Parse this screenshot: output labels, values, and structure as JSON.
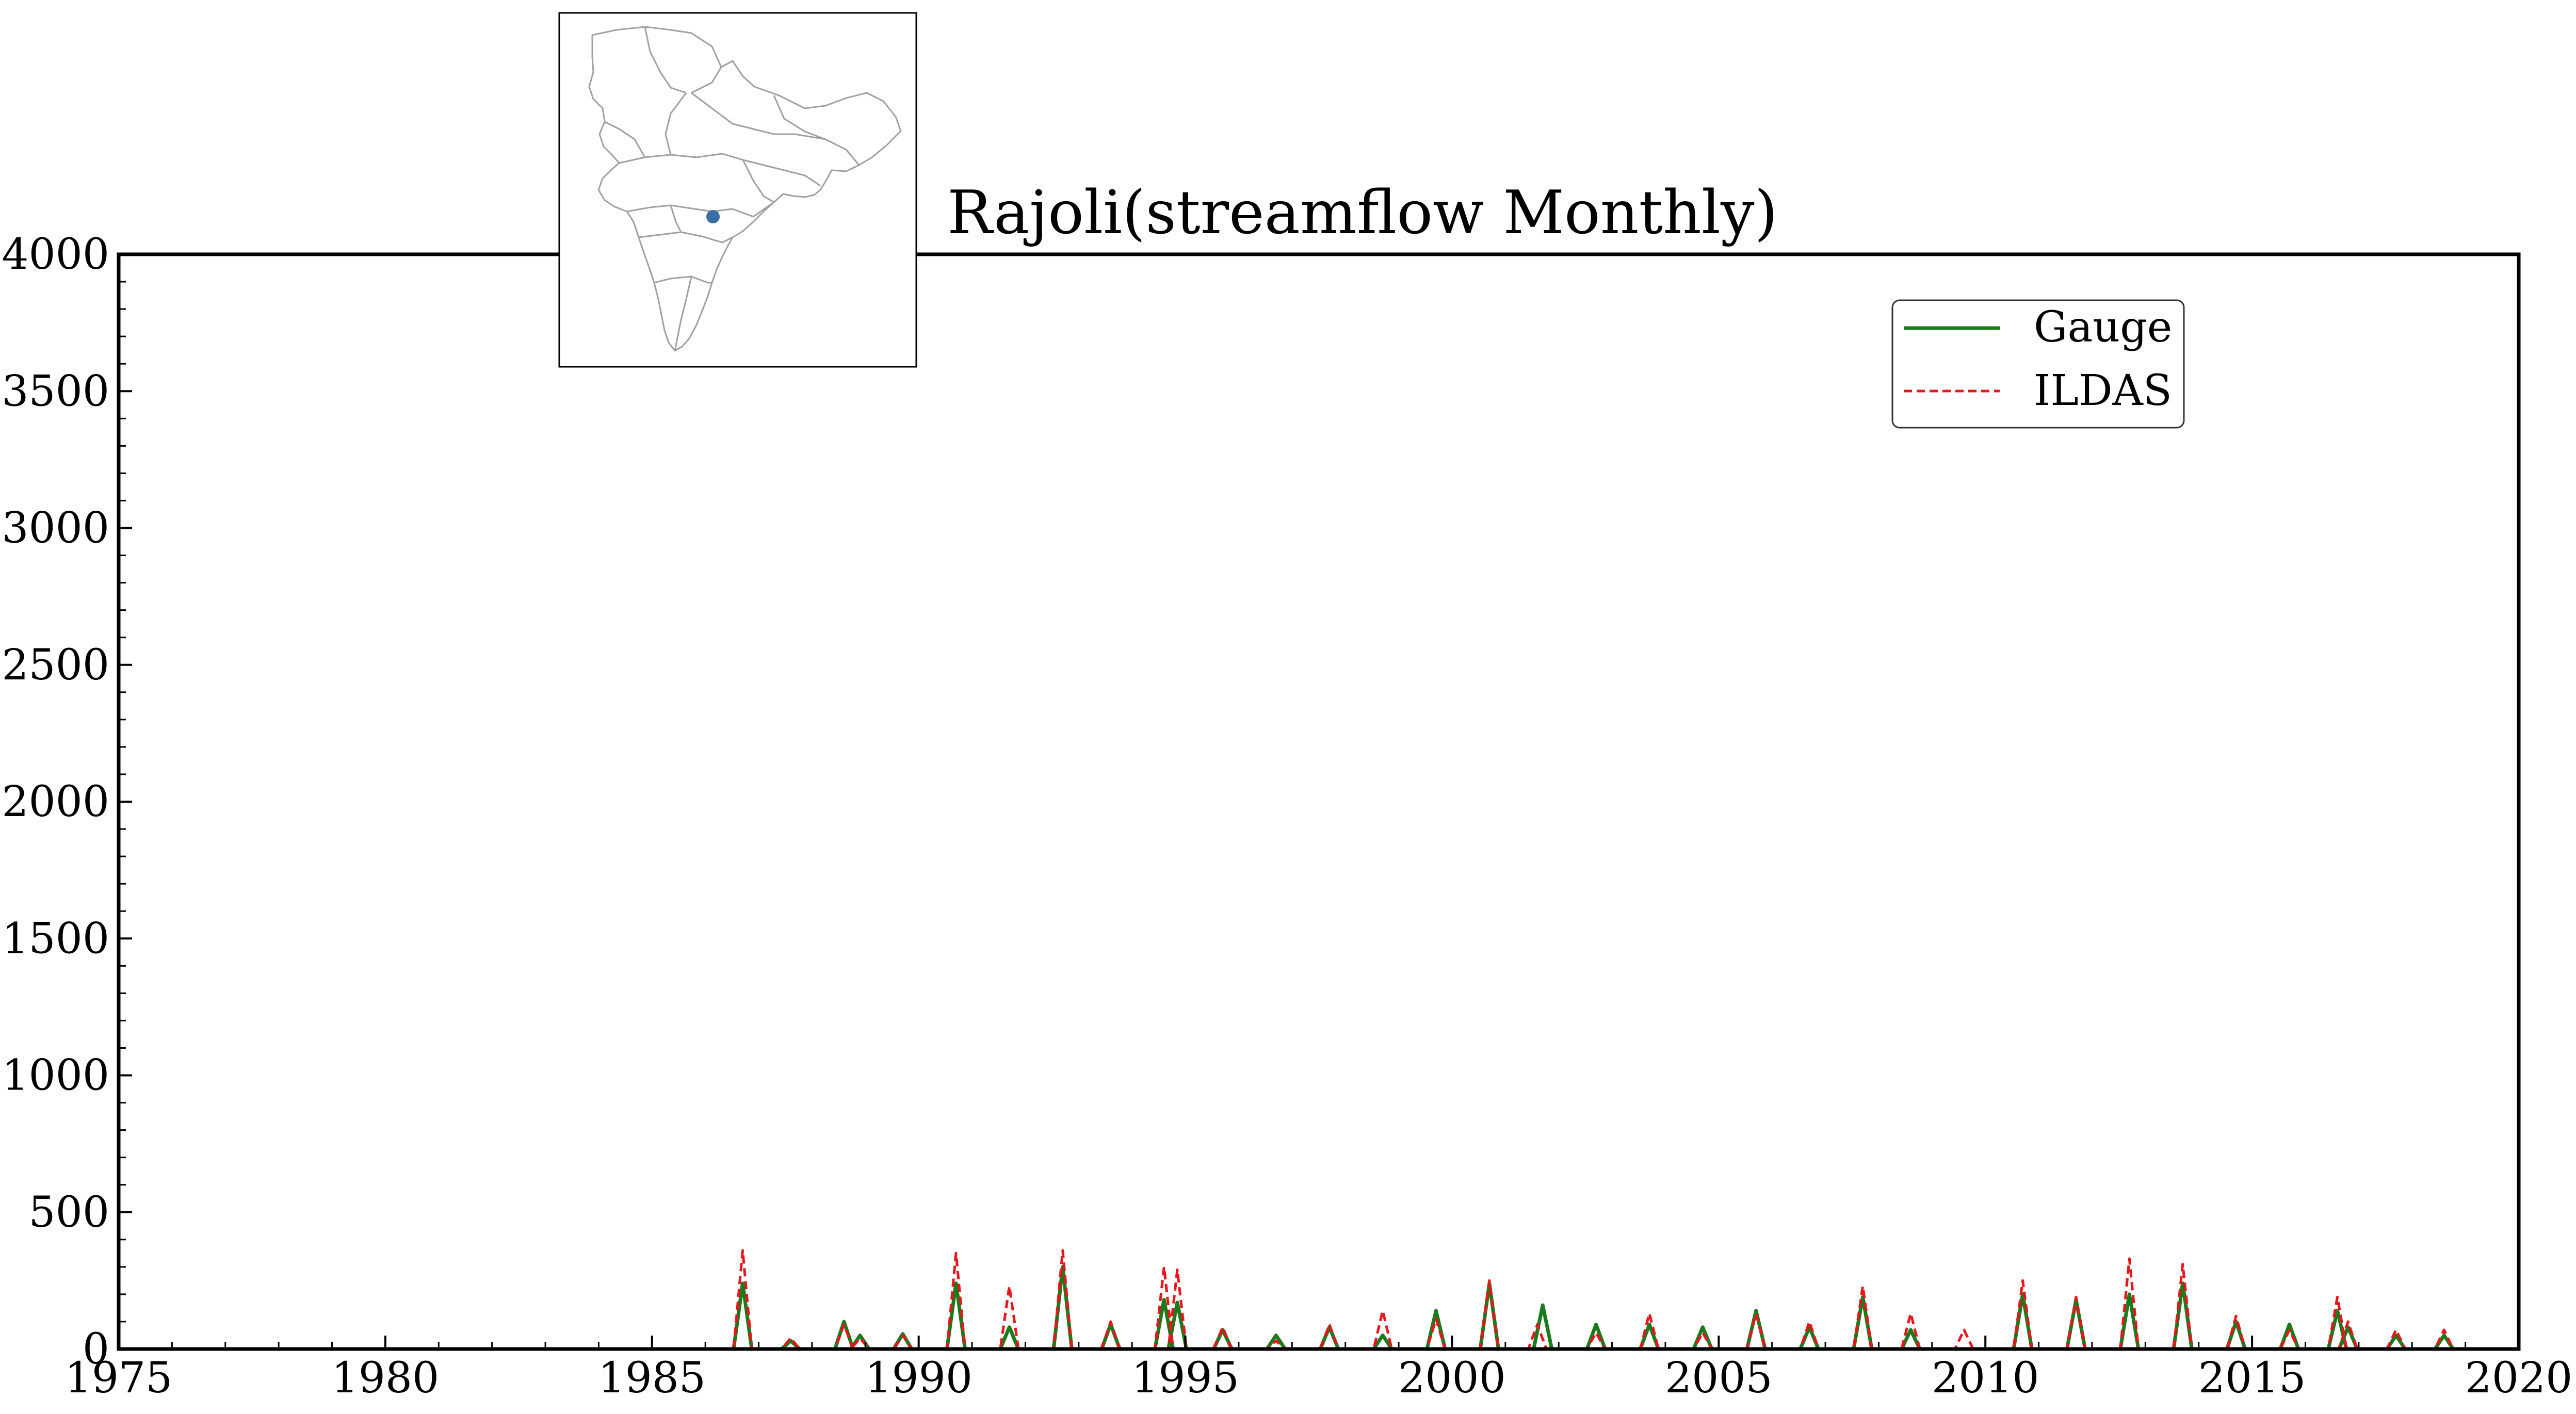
{
  "chart_data": {
    "type": "line",
    "title": "Rajoli(streamflow Monthly)",
    "xlabel": "",
    "ylabel": "",
    "xlim": [
      1975,
      2020
    ],
    "ylim": [
      0,
      4000
    ],
    "x_ticks": [
      "1975",
      "1980",
      "1985",
      "1990",
      "1995",
      "2000",
      "2005",
      "2010",
      "2015",
      "2020"
    ],
    "y_ticks": [
      "0",
      "500",
      "1000",
      "1500",
      "2000",
      "2500",
      "3000",
      "3500",
      "4000"
    ],
    "grid": false,
    "legend": "top-right",
    "inset": "location map of the Indian subcontinent river basins with a blue station marker",
    "series": [
      {
        "name": "Gauge",
        "color": "#1b7a1b",
        "style": "solid",
        "peaks": [
          [
            1986.7,
            240
          ],
          [
            1987.6,
            30
          ],
          [
            1988.6,
            100
          ],
          [
            1988.9,
            50
          ],
          [
            1989.7,
            55
          ],
          [
            1990.7,
            240
          ],
          [
            1991.7,
            80
          ],
          [
            1992.7,
            300
          ],
          [
            1993.6,
            90
          ],
          [
            1994.6,
            180
          ],
          [
            1994.85,
            170
          ],
          [
            1995.7,
            70
          ],
          [
            1996.7,
            50
          ],
          [
            1997.7,
            80
          ],
          [
            1998.7,
            50
          ],
          [
            1999.7,
            140
          ],
          [
            2000.7,
            240
          ],
          [
            2001.7,
            160
          ],
          [
            2002.7,
            90
          ],
          [
            2003.7,
            90
          ],
          [
            2004.7,
            80
          ],
          [
            2005.7,
            140
          ],
          [
            2006.7,
            80
          ],
          [
            2007.7,
            190
          ],
          [
            2008.6,
            70
          ],
          [
            2010.7,
            200
          ],
          [
            2011.7,
            180
          ],
          [
            2012.7,
            200
          ],
          [
            2013.7,
            240
          ],
          [
            2014.7,
            100
          ],
          [
            2015.7,
            90
          ],
          [
            2016.6,
            140
          ],
          [
            2016.8,
            80
          ],
          [
            2017.7,
            50
          ],
          [
            2018.6,
            50
          ]
        ]
      },
      {
        "name": "ILDAS",
        "color": "#e8151b",
        "style": "dashed",
        "peaks": [
          [
            1986.7,
            360
          ],
          [
            1987.6,
            40
          ],
          [
            1988.6,
            90
          ],
          [
            1988.9,
            40
          ],
          [
            1989.7,
            50
          ],
          [
            1990.7,
            350
          ],
          [
            1991.7,
            230
          ],
          [
            1992.7,
            360
          ],
          [
            1993.6,
            100
          ],
          [
            1994.6,
            300
          ],
          [
            1994.85,
            290
          ],
          [
            1995.7,
            80
          ],
          [
            1996.7,
            30
          ],
          [
            1997.7,
            90
          ],
          [
            1998.7,
            140
          ],
          [
            1999.7,
            110
          ],
          [
            2000.7,
            250
          ],
          [
            2001.6,
            90
          ],
          [
            2002.7,
            60
          ],
          [
            2003.7,
            130
          ],
          [
            2004.7,
            60
          ],
          [
            2005.7,
            130
          ],
          [
            2006.7,
            100
          ],
          [
            2007.7,
            230
          ],
          [
            2008.6,
            130
          ],
          [
            2009.6,
            70
          ],
          [
            2010.7,
            250
          ],
          [
            2011.7,
            190
          ],
          [
            2012.7,
            330
          ],
          [
            2013.7,
            310
          ],
          [
            2014.7,
            120
          ],
          [
            2015.7,
            70
          ],
          [
            2016.6,
            190
          ],
          [
            2016.8,
            100
          ],
          [
            2017.7,
            70
          ],
          [
            2018.6,
            70
          ]
        ]
      }
    ]
  }
}
